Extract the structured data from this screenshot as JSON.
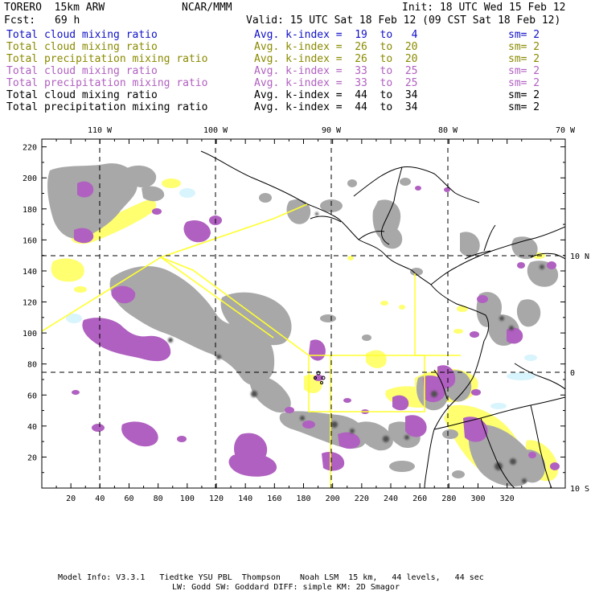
{
  "header": {
    "model": "TORERO  15km ARW",
    "org": "NCAR/MMM",
    "init": "Init: 18 UTC Wed 15 Feb 12",
    "fcst_label": "Fcst:",
    "fcst_value": "69 h",
    "valid": "Valid: 15 UTC Sat 18 Feb 12 (09 CST Sat 18 Feb 12)"
  },
  "legend": [
    {
      "label": "Total cloud mixing ratio",
      "kidx": "Avg. k-index =  19  to   4",
      "sm": "sm= 2",
      "color": "#1010c8"
    },
    {
      "label": "Total cloud mixing ratio",
      "kidx": "Avg. k-index =  26  to  20",
      "sm": "sm= 2",
      "color": "#8a8a00"
    },
    {
      "label": "Total precipitation mixing ratio",
      "kidx": "Avg. k-index =  26  to  20",
      "sm": "sm= 2",
      "color": "#8a8a00"
    },
    {
      "label": "Total cloud mixing ratio",
      "kidx": "Avg. k-index =  33  to  25",
      "sm": "sm= 2",
      "color": "#b060c0"
    },
    {
      "label": "Total precipitation mixing ratio",
      "kidx": "Avg. k-index =  33  to  25",
      "sm": "sm= 2",
      "color": "#b060c0"
    },
    {
      "label": "Total cloud mixing ratio",
      "kidx": "Avg. k-index =  44  to  34",
      "sm": "sm= 2",
      "color": "#000000"
    },
    {
      "label": "Total precipitation mixing ratio",
      "kidx": "Avg. k-index =  44  to  34",
      "sm": "sm= 2",
      "color": "#000000"
    }
  ],
  "map": {
    "x_ticks": [
      "20",
      "40",
      "60",
      "80",
      "100",
      "120",
      "140",
      "160",
      "180",
      "200",
      "220",
      "240",
      "260",
      "280",
      "300",
      "320"
    ],
    "y_ticks": [
      "20",
      "40",
      "60",
      "80",
      "100",
      "120",
      "140",
      "160",
      "180",
      "200",
      "220"
    ],
    "lon_labels": [
      "110 W",
      "100 W",
      "90 W",
      "80 W",
      "70 W"
    ],
    "lat_labels": [
      "10 N",
      "0",
      "10 S"
    ],
    "colors": {
      "gray": "#a8a8a8",
      "purple": "#b060c0",
      "yellow": "#ffff70",
      "cyan": "#d8f4fc",
      "box": "#ffff30"
    }
  },
  "footer": {
    "line1": "Model Info: V3.3.1   Tiedtke YSU PBL  Thompson    Noah LSM  15 km,   44 levels,   44 sec",
    "line2": "LW: Godd SW: Goddard DIFF: simple KM: 2D Smagor"
  }
}
